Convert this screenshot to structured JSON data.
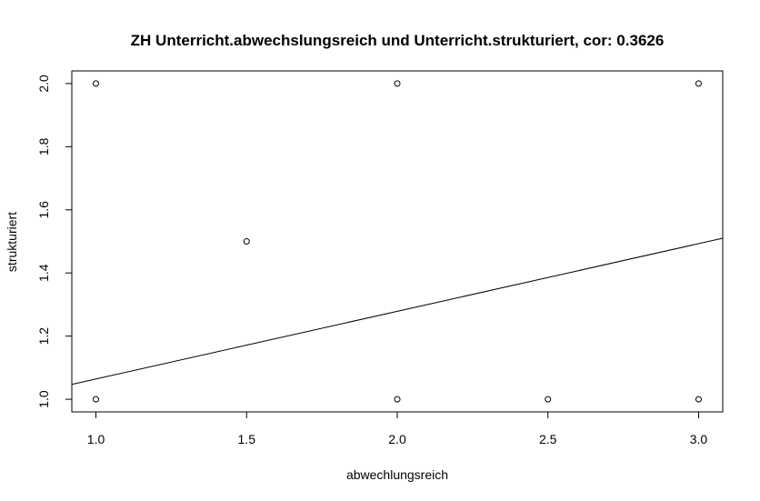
{
  "chart_data": {
    "type": "scatter",
    "title": "ZH Unterricht.abwechslungsreich und Unterricht.strukturiert, cor: 0.3626",
    "xlabel": "abwechlungsreich",
    "ylabel": "strukturiert",
    "xlim": [
      0.92,
      3.08
    ],
    "ylim": [
      0.96,
      2.04
    ],
    "x_ticks": [
      1.0,
      1.5,
      2.0,
      2.5,
      3.0
    ],
    "x_tick_labels": [
      "1.0",
      "1.5",
      "2.0",
      "2.5",
      "3.0"
    ],
    "y_ticks": [
      1.0,
      1.2,
      1.4,
      1.6,
      1.8,
      2.0
    ],
    "y_tick_labels": [
      "1.0",
      "1.2",
      "1.4",
      "1.6",
      "1.8",
      "2.0"
    ],
    "points": [
      {
        "x": 1.0,
        "y": 2.0
      },
      {
        "x": 2.0,
        "y": 2.0
      },
      {
        "x": 3.0,
        "y": 2.0
      },
      {
        "x": 1.5,
        "y": 1.5
      },
      {
        "x": 1.0,
        "y": 1.0
      },
      {
        "x": 2.0,
        "y": 1.0
      },
      {
        "x": 2.5,
        "y": 1.0
      },
      {
        "x": 3.0,
        "y": 1.0
      }
    ],
    "regression_line": {
      "intercept": 0.85,
      "slope": 0.2143
    },
    "grid": false,
    "legend": "none",
    "colors": {
      "points": "#000000",
      "line": "#000000",
      "axes": "#000000"
    }
  }
}
